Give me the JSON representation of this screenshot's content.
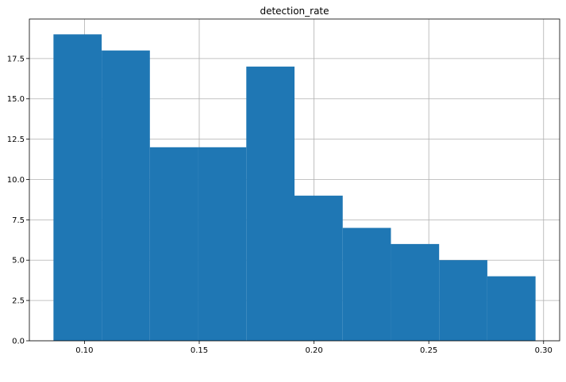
{
  "chart_data": {
    "type": "bar",
    "subtype": "histogram",
    "title": "detection_rate",
    "xlabel": "",
    "ylabel": "",
    "bin_edges": [
      0.0865,
      0.1075,
      0.1285,
      0.1495,
      0.1705,
      0.1915,
      0.2125,
      0.2335,
      0.2545,
      0.2755,
      0.2965
    ],
    "values": [
      19,
      18,
      12,
      12,
      17,
      9,
      7,
      6,
      5,
      4
    ],
    "xlim": [
      0.076,
      0.307
    ],
    "ylim": [
      0,
      19.95
    ],
    "x_ticks": [
      0.1,
      0.15,
      0.2,
      0.25,
      0.3
    ],
    "x_tick_labels": [
      "0.10",
      "0.15",
      "0.20",
      "0.25",
      "0.30"
    ],
    "y_ticks": [
      0,
      2.5,
      5,
      7.5,
      10,
      12.5,
      15,
      17.5
    ],
    "y_tick_labels": [
      "0.0",
      "2.5",
      "5.0",
      "7.5",
      "10.0",
      "12.5",
      "15.0",
      "17.5"
    ],
    "grid": true,
    "bar_color": "#1f77b4"
  }
}
